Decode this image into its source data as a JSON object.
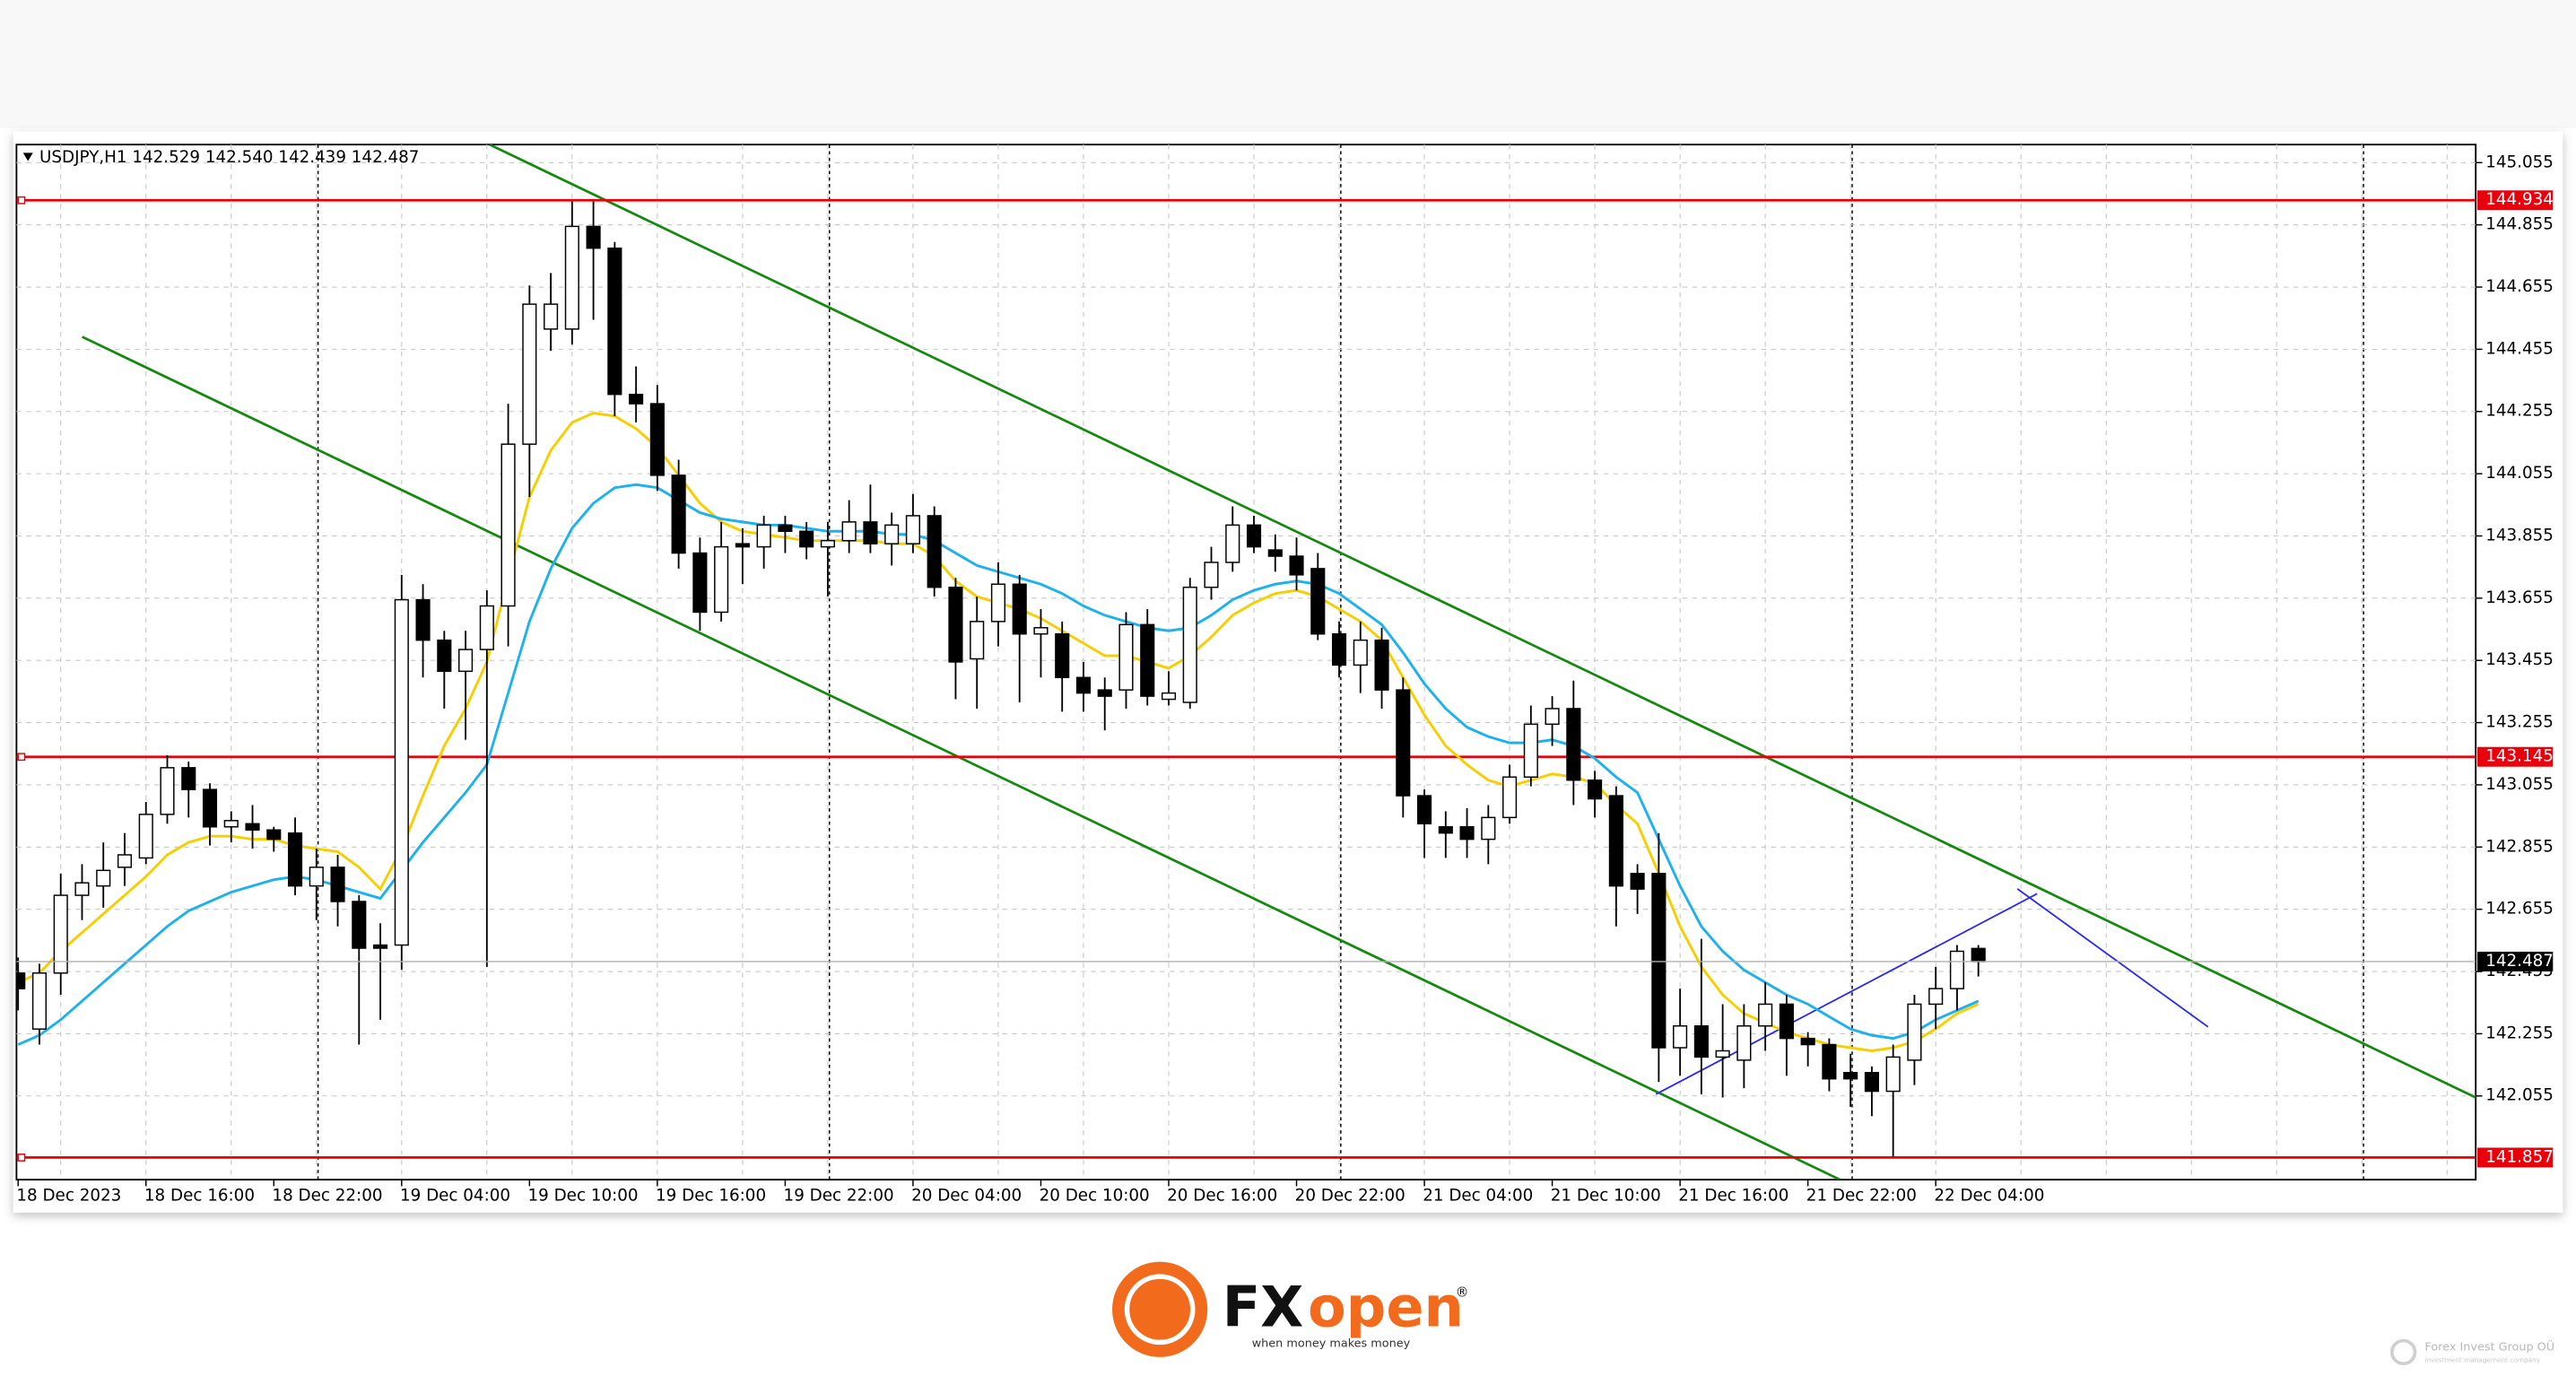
{
  "chart_data": {
    "type": "candlestick",
    "title": "USDJPY,H1  142.529 142.540 142.439 142.487",
    "categories": [
      "18 Dec 2023",
      null,
      null,
      null,
      null,
      null,
      "18 Dec 16:00",
      null,
      null,
      null,
      null,
      null,
      "18 Dec 22:00",
      null,
      null,
      null,
      null,
      null,
      "19 Dec 04:00",
      null,
      null,
      null,
      null,
      null,
      "19 Dec 10:00",
      null,
      null,
      null,
      null,
      null,
      "19 Dec 16:00",
      null,
      null,
      null,
      null,
      null,
      "19 Dec 22:00",
      null,
      null,
      null,
      null,
      null,
      "20 Dec 04:00",
      null,
      null,
      null,
      null,
      null,
      "20 Dec 10:00",
      null,
      null,
      null,
      null,
      null,
      "20 Dec 16:00",
      null,
      null,
      null,
      null,
      null,
      "20 Dec 22:00",
      null,
      null,
      null,
      null,
      null,
      "21 Dec 04:00",
      null,
      null,
      null,
      null,
      null,
      "21 Dec 10:00",
      null,
      null,
      null,
      null,
      null,
      "21 Dec 16:00",
      null,
      null,
      null,
      null,
      null,
      "21 Dec 22:00",
      null,
      null,
      null,
      null,
      null,
      "22 Dec 04:00",
      null,
      null
    ],
    "open": [
      142.45,
      142.27,
      142.45,
      142.7,
      142.73,
      142.79,
      142.82,
      142.96,
      143.11,
      143.04,
      142.92,
      142.93,
      142.91,
      142.9,
      142.73,
      142.79,
      142.68,
      142.54,
      142.54,
      143.65,
      143.52,
      143.42,
      143.49,
      143.63,
      144.15,
      144.52,
      144.52,
      144.85,
      144.78,
      144.31,
      144.28,
      144.05,
      143.8,
      143.61,
      143.83,
      143.82,
      143.89,
      143.87,
      143.82,
      143.84,
      143.9,
      143.83,
      143.83,
      143.92,
      143.69,
      143.46,
      143.58,
      143.7,
      143.54,
      143.54,
      143.4,
      143.36,
      143.36,
      143.57,
      143.33,
      143.32,
      143.69,
      143.77,
      143.89,
      143.81,
      143.79,
      143.75,
      143.54,
      143.44,
      143.52,
      143.36,
      143.02,
      142.92,
      142.92,
      142.88,
      142.95,
      143.08,
      143.25,
      143.3,
      143.07,
      143.02,
      142.77,
      142.77,
      142.21,
      142.28,
      142.18,
      142.17,
      142.28,
      142.35,
      142.24,
      142.22,
      142.13,
      142.13,
      142.07,
      142.17,
      142.35,
      142.4,
      142.529
    ],
    "high": [
      142.5,
      142.48,
      142.77,
      142.8,
      142.87,
      142.9,
      143.0,
      143.15,
      143.13,
      143.06,
      142.97,
      142.99,
      142.92,
      142.95,
      142.85,
      142.83,
      142.7,
      142.61,
      143.73,
      143.7,
      143.55,
      143.55,
      143.68,
      144.28,
      144.66,
      144.7,
      144.93,
      144.93,
      144.8,
      144.4,
      144.34,
      144.1,
      143.85,
      143.9,
      143.88,
      143.92,
      143.92,
      143.9,
      143.9,
      143.97,
      144.02,
      143.93,
      143.99,
      143.95,
      143.72,
      143.66,
      143.77,
      143.73,
      143.62,
      143.58,
      143.45,
      143.4,
      143.61,
      143.62,
      143.42,
      143.72,
      143.82,
      143.95,
      143.92,
      143.86,
      143.85,
      143.8,
      143.58,
      143.58,
      143.56,
      143.4,
      143.04,
      142.97,
      142.98,
      142.99,
      143.12,
      143.31,
      143.34,
      143.39,
      143.1,
      143.05,
      142.8,
      142.9,
      142.4,
      142.56,
      142.35,
      142.35,
      142.42,
      142.38,
      142.26,
      142.24,
      142.19,
      142.15,
      142.22,
      142.38,
      142.47,
      142.54,
      142.54
    ],
    "low": [
      142.33,
      142.22,
      142.38,
      142.62,
      142.66,
      142.73,
      142.8,
      142.93,
      142.95,
      142.86,
      142.87,
      142.85,
      142.84,
      142.7,
      142.62,
      142.6,
      142.22,
      142.3,
      142.46,
      143.4,
      143.3,
      143.2,
      142.47,
      143.5,
      143.98,
      144.45,
      144.47,
      144.55,
      144.24,
      144.22,
      144.0,
      143.75,
      143.55,
      143.58,
      143.7,
      143.75,
      143.8,
      143.78,
      143.66,
      143.8,
      143.8,
      143.76,
      143.8,
      143.66,
      143.33,
      143.3,
      143.5,
      143.32,
      143.4,
      143.29,
      143.29,
      143.23,
      143.3,
      143.31,
      143.31,
      143.3,
      143.65,
      143.74,
      143.8,
      143.74,
      143.68,
      143.52,
      143.4,
      143.35,
      143.3,
      142.95,
      142.82,
      142.82,
      142.82,
      142.8,
      142.93,
      143.05,
      143.18,
      142.99,
      142.95,
      142.6,
      142.64,
      142.1,
      142.12,
      142.06,
      142.05,
      142.08,
      142.2,
      142.12,
      142.15,
      142.07,
      142.02,
      141.99,
      141.86,
      142.09,
      142.27,
      142.33,
      142.439
    ],
    "close": [
      142.4,
      142.45,
      142.7,
      142.74,
      142.78,
      142.83,
      142.96,
      143.11,
      143.04,
      142.92,
      142.94,
      142.91,
      142.88,
      142.73,
      142.79,
      142.68,
      142.53,
      142.53,
      143.65,
      143.52,
      143.42,
      143.49,
      143.63,
      144.15,
      144.6,
      144.6,
      144.85,
      144.78,
      144.31,
      144.28,
      144.05,
      143.8,
      143.61,
      143.82,
      143.82,
      143.89,
      143.87,
      143.82,
      143.84,
      143.9,
      143.83,
      143.89,
      143.92,
      143.69,
      143.45,
      143.58,
      143.7,
      143.54,
      143.56,
      143.4,
      143.35,
      143.34,
      143.57,
      143.34,
      143.35,
      143.69,
      143.77,
      143.89,
      143.82,
      143.79,
      143.73,
      143.54,
      143.44,
      143.52,
      143.36,
      143.02,
      142.93,
      142.9,
      142.88,
      142.95,
      143.08,
      143.25,
      143.3,
      143.07,
      143.01,
      142.73,
      142.72,
      142.21,
      142.28,
      142.18,
      142.2,
      142.28,
      142.35,
      142.24,
      142.22,
      142.11,
      142.11,
      142.07,
      142.18,
      142.35,
      142.4,
      142.52,
      142.487
    ],
    "up_color": "#ffffff",
    "down_color": "#000000",
    "lines": [
      {
        "color": "#f5cf00",
        "values": [
          142.42,
          142.45,
          142.52,
          142.58,
          142.64,
          142.7,
          142.76,
          142.83,
          142.87,
          142.89,
          142.89,
          142.88,
          142.88,
          142.86,
          142.85,
          142.84,
          142.79,
          142.72,
          142.85,
          143.02,
          143.18,
          143.3,
          143.45,
          143.72,
          143.98,
          144.13,
          144.22,
          144.25,
          144.24,
          144.2,
          144.14,
          144.05,
          143.96,
          143.9,
          143.87,
          143.86,
          143.85,
          143.84,
          143.84,
          143.84,
          143.84,
          143.83,
          143.83,
          143.79,
          143.71,
          143.66,
          143.64,
          143.62,
          143.59,
          143.55,
          143.51,
          143.47,
          143.47,
          143.45,
          143.43,
          143.47,
          143.53,
          143.6,
          143.64,
          143.67,
          143.68,
          143.66,
          143.62,
          143.58,
          143.52,
          143.4,
          143.28,
          143.18,
          143.12,
          143.07,
          143.05,
          143.07,
          143.09,
          143.08,
          143.06,
          142.99,
          142.93,
          142.77,
          142.6,
          142.47,
          142.38,
          142.32,
          142.29,
          142.26,
          142.24,
          142.22,
          142.21,
          142.2,
          142.21,
          142.23,
          142.27,
          142.32,
          142.35
        ]
      },
      {
        "color": "#1fb2ea",
        "values": [
          142.22,
          142.25,
          142.3,
          142.36,
          142.42,
          142.48,
          142.54,
          142.6,
          142.65,
          142.68,
          142.71,
          142.73,
          142.75,
          142.76,
          142.75,
          142.73,
          142.71,
          142.69,
          142.78,
          142.87,
          142.95,
          143.03,
          143.12,
          143.35,
          143.58,
          143.75,
          143.88,
          143.96,
          144.01,
          144.02,
          144.01,
          143.97,
          143.93,
          143.91,
          143.9,
          143.89,
          143.89,
          143.88,
          143.87,
          143.87,
          143.87,
          143.86,
          143.86,
          143.84,
          143.8,
          143.76,
          143.74,
          143.72,
          143.7,
          143.67,
          143.63,
          143.6,
          143.58,
          143.56,
          143.55,
          143.56,
          143.6,
          143.65,
          143.68,
          143.7,
          143.71,
          143.7,
          143.67,
          143.62,
          143.57,
          143.48,
          143.38,
          143.3,
          143.24,
          143.21,
          143.19,
          143.19,
          143.2,
          143.18,
          143.14,
          143.08,
          143.03,
          142.88,
          142.73,
          142.6,
          142.52,
          142.46,
          142.42,
          142.38,
          142.35,
          142.31,
          142.27,
          142.25,
          142.24,
          142.26,
          142.3,
          142.33,
          142.36
        ]
      }
    ],
    "levels": [
      {
        "value": 144.934,
        "color": "#e8000b"
      },
      {
        "value": 143.145,
        "color": "#e8000b"
      },
      {
        "value": 141.857,
        "color": "#e8000b"
      }
    ],
    "last_price": 142.487,
    "ylim": [
      141.786,
      145.113
    ],
    "yticks": [
      145.055,
      144.855,
      144.655,
      144.455,
      144.255,
      144.055,
      143.855,
      143.655,
      143.455,
      143.255,
      143.055,
      142.855,
      142.655,
      142.455,
      142.255,
      142.055
    ],
    "grid": true
  },
  "footer": {
    "logo_fx": "FX",
    "logo_open": "open",
    "registered": "®",
    "tagline": "when money makes money",
    "watermark": "Forex Invest Group OÜ",
    "watermark_sub": "investment management company"
  }
}
